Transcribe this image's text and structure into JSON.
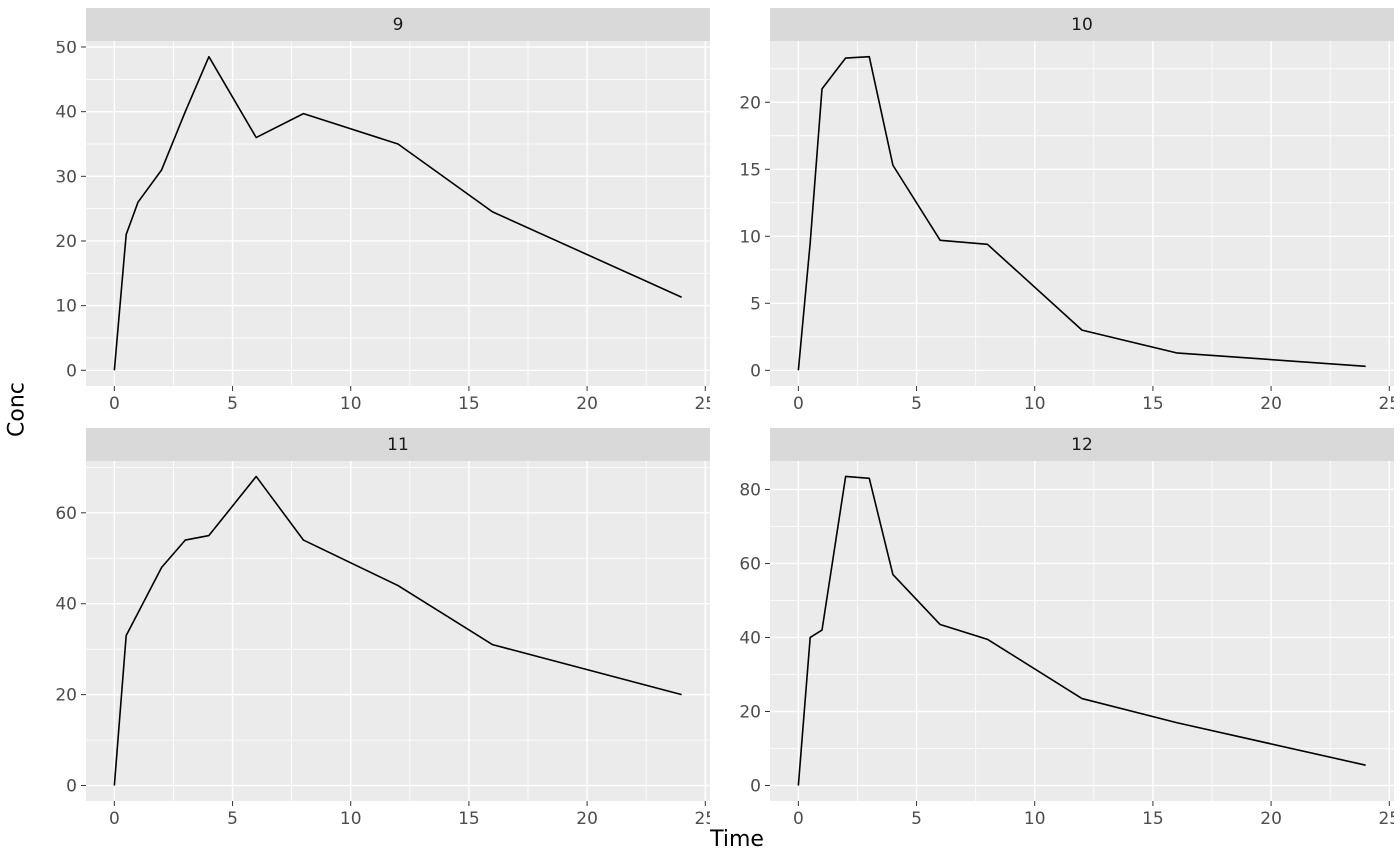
{
  "figure": {
    "y_axis_title": "Conc",
    "x_axis_title": "Time"
  },
  "chart_data": {
    "type": "line",
    "title": "",
    "xlabel": "Time",
    "ylabel": "Conc",
    "legend": "none",
    "grid": "on",
    "panel_bg": "#ebebeb",
    "grid_color": "#ffffff",
    "strip_bg": "#d9d9d9",
    "strip_text_color": "#1a1a1a",
    "line_color": "#000000",
    "tick_text_color": "#4d4d4d",
    "tick_mark_color": "#333333",
    "x": [
      0,
      0.5,
      1,
      2,
      3,
      4,
      6,
      8,
      12,
      16,
      24
    ],
    "xlim": [
      -1.2,
      25.2
    ],
    "x_ticks": [
      0,
      5,
      10,
      15,
      20,
      25
    ],
    "x_minor": [
      2.5,
      7.5,
      12.5,
      17.5,
      22.5
    ],
    "facets": [
      {
        "label": "9",
        "values": [
          0,
          21,
          26,
          31,
          40,
          48.5,
          36,
          39.7,
          35,
          24.5,
          11.3
        ],
        "ylim": [
          -2.43,
          50.93
        ],
        "y_ticks": [
          0,
          10,
          20,
          30,
          40,
          50
        ],
        "y_minor": [
          5,
          15,
          25,
          35,
          45
        ]
      },
      {
        "label": "10",
        "values": [
          0,
          9.5,
          21,
          23.3,
          23.4,
          15.3,
          9.7,
          9.4,
          3,
          1.3,
          0.3
        ],
        "ylim": [
          -1.17,
          24.57
        ],
        "y_ticks": [
          0,
          5,
          10,
          15,
          20
        ],
        "y_minor": [
          2.5,
          7.5,
          12.5,
          17.5,
          22.5
        ]
      },
      {
        "label": "11",
        "values": [
          0,
          33,
          38,
          48,
          54,
          55,
          68,
          54,
          44,
          31,
          20
        ],
        "ylim": [
          -3.4,
          71.4
        ],
        "y_ticks": [
          0,
          20,
          40,
          60
        ],
        "y_minor": [
          10,
          30,
          50,
          70
        ]
      },
      {
        "label": "12",
        "values": [
          0,
          40,
          42,
          83.5,
          83,
          57,
          43.5,
          39.5,
          23.5,
          17,
          5.5
        ],
        "ylim": [
          -4.18,
          87.68
        ],
        "y_ticks": [
          0,
          20,
          40,
          60,
          80
        ],
        "y_minor": [
          10,
          30,
          50,
          70
        ]
      }
    ]
  }
}
